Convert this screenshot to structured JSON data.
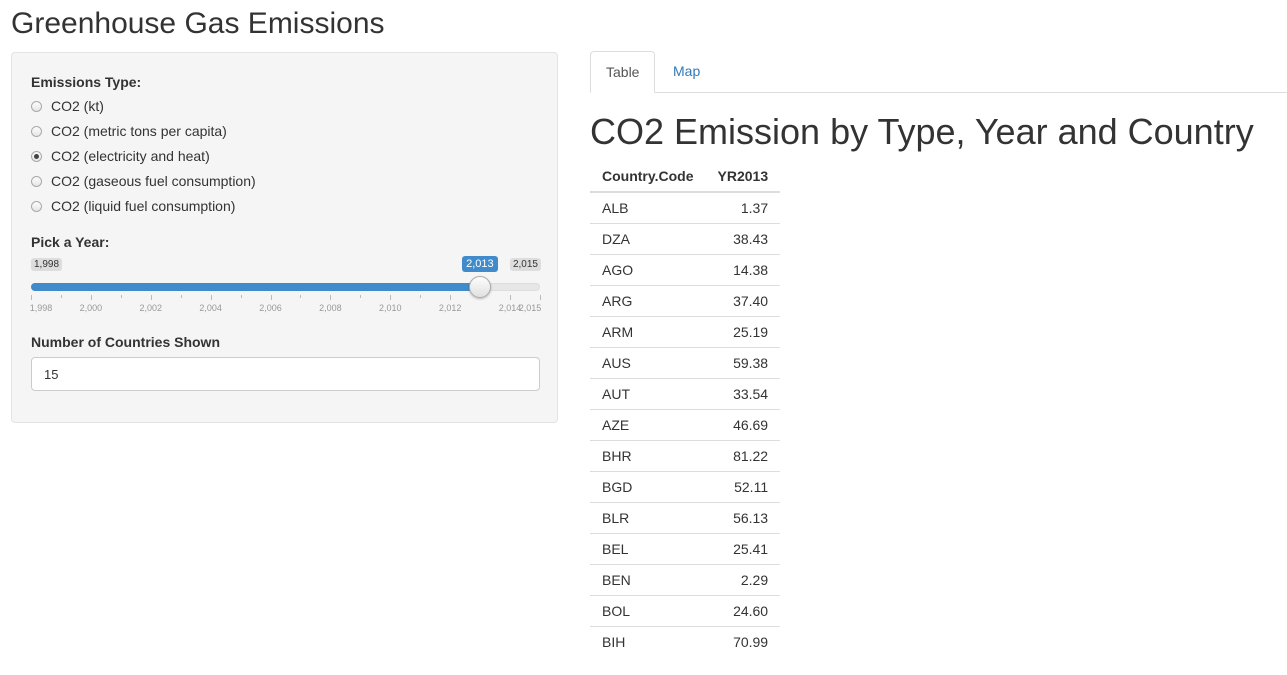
{
  "app": {
    "title": "Greenhouse Gas Emissions"
  },
  "sidebar": {
    "emissions_label": "Emissions Type:",
    "emission_options": [
      {
        "label": "CO2 (kt)",
        "checked": false
      },
      {
        "label": "CO2 (metric tons per capita)",
        "checked": false
      },
      {
        "label": "CO2 (electricity and heat)",
        "checked": true
      },
      {
        "label": "CO2 (gaseous fuel consumption)",
        "checked": false
      },
      {
        "label": "CO2 (liquid fuel consumption)",
        "checked": false
      }
    ],
    "year_label": "Pick a Year:",
    "year_slider": {
      "min_label": "1,998",
      "max_label": "2,015",
      "current_label": "2,013",
      "min": 1998,
      "max": 2015,
      "value": 2013,
      "tick_labels": [
        "1,998",
        "2,000",
        "2,002",
        "2,004",
        "2,006",
        "2,008",
        "2,010",
        "2,012",
        "2,014",
        "2,015"
      ],
      "accent_color": "#428bca"
    },
    "countries_label": "Number of Countries Shown",
    "countries_value": "15"
  },
  "tabs": [
    {
      "label": "Table",
      "active": true
    },
    {
      "label": "Map",
      "active": false
    }
  ],
  "main": {
    "heading": "CO2 Emission by Type, Year and Country",
    "table": {
      "columns": [
        "Country.Code",
        "YR2013"
      ],
      "rows": [
        [
          "ALB",
          "1.37"
        ],
        [
          "DZA",
          "38.43"
        ],
        [
          "AGO",
          "14.38"
        ],
        [
          "ARG",
          "37.40"
        ],
        [
          "ARM",
          "25.19"
        ],
        [
          "AUS",
          "59.38"
        ],
        [
          "AUT",
          "33.54"
        ],
        [
          "AZE",
          "46.69"
        ],
        [
          "BHR",
          "81.22"
        ],
        [
          "BGD",
          "52.11"
        ],
        [
          "BLR",
          "56.13"
        ],
        [
          "BEL",
          "25.41"
        ],
        [
          "BEN",
          "2.29"
        ],
        [
          "BOL",
          "24.60"
        ],
        [
          "BIH",
          "70.99"
        ]
      ]
    }
  }
}
